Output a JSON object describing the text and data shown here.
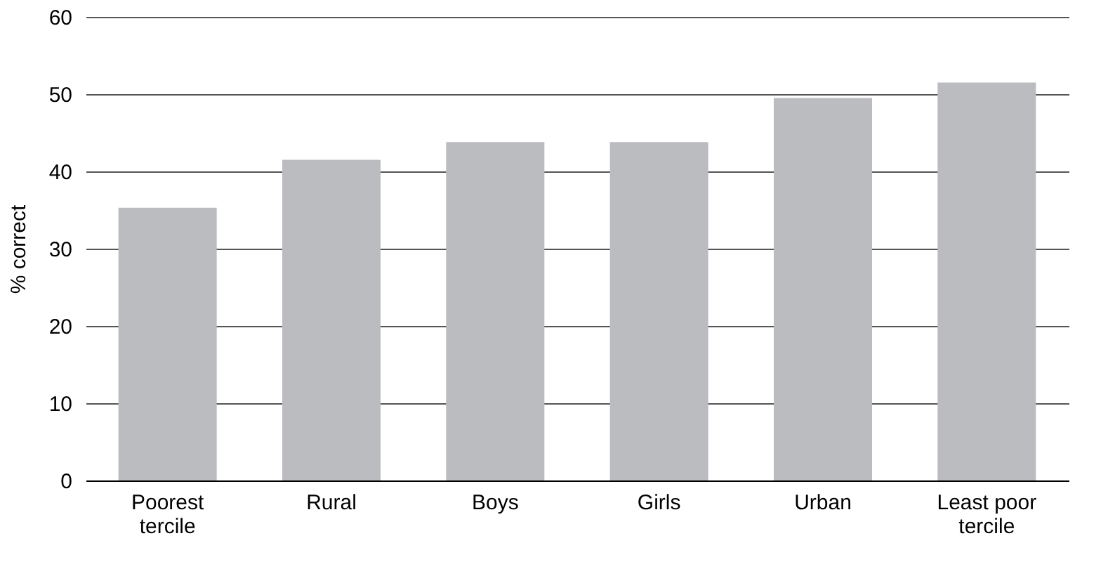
{
  "chart_data": {
    "type": "bar",
    "ylabel": "% correct",
    "categories": [
      "Poorest\ntercile",
      "Rural",
      "Boys",
      "Girls",
      "Urban",
      "Least poor\ntercile"
    ],
    "values": [
      35.3,
      41.5,
      43.8,
      43.8,
      49.5,
      51.5
    ],
    "color": "#bbbcc0",
    "ylim": [
      0,
      60
    ],
    "yticks": [
      0,
      10,
      20,
      30,
      40,
      50,
      60
    ],
    "grid": "y"
  }
}
